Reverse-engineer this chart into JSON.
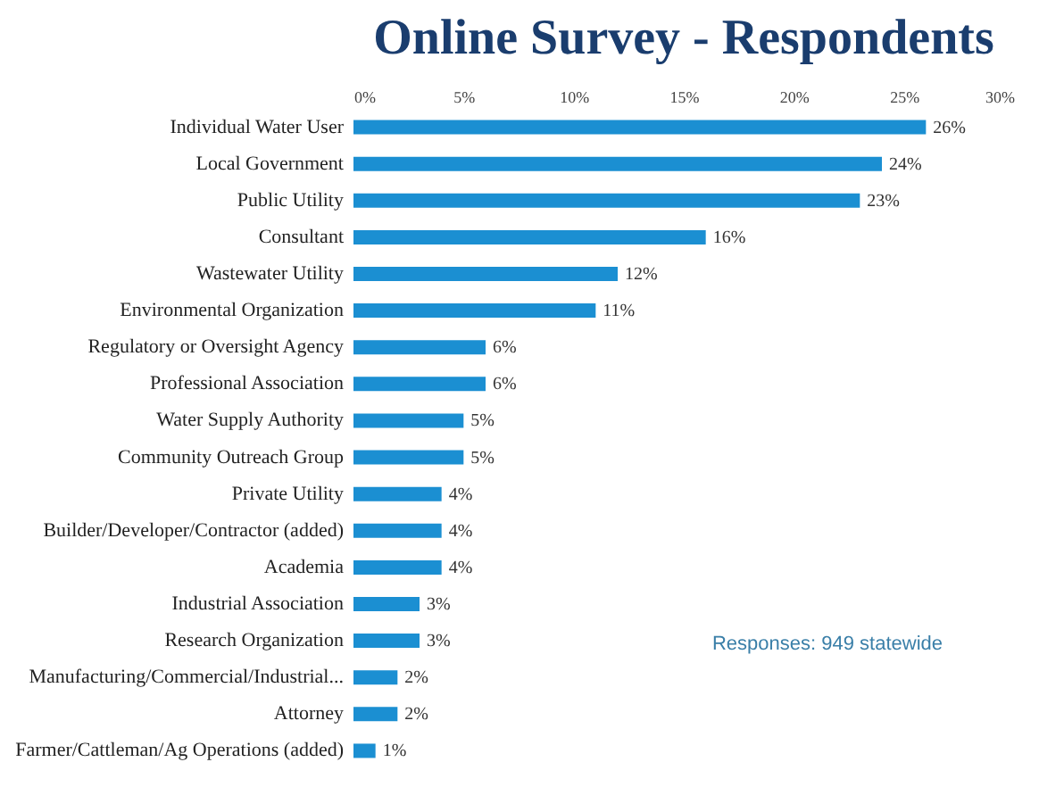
{
  "chart_data": {
    "type": "bar",
    "orientation": "horizontal",
    "title": "Online Survey - Respondents",
    "categories": [
      "Individual Water User",
      "Local Government",
      "Public Utility",
      "Consultant",
      "Wastewater Utility",
      "Environmental Organization",
      "Regulatory or Oversight Agency",
      "Professional Association",
      "Water Supply Authority",
      "Community Outreach Group",
      "Private Utility",
      "Builder/Developer/Contractor (added)",
      "Academia",
      "Industrial Association",
      "Research Organization",
      "Manufacturing/Commercial/Industrial...",
      "Attorney",
      "Farmer/Cattleman/Ag Operations (added)"
    ],
    "values": [
      26,
      24,
      23,
      16,
      12,
      11,
      6,
      6,
      5,
      5,
      4,
      4,
      4,
      3,
      3,
      2,
      2,
      1
    ],
    "value_labels": [
      "26%",
      "24%",
      "23%",
      "16%",
      "12%",
      "11%",
      "6%",
      "6%",
      "5%",
      "5%",
      "4%",
      "4%",
      "4%",
      "3%",
      "3%",
      "2%",
      "2%",
      "1%"
    ],
    "color": "#1b8fd2",
    "xlim": [
      0,
      30
    ],
    "xticks": [
      {
        "value": 0,
        "label": "0%"
      },
      {
        "value": 5,
        "label": "5%"
      },
      {
        "value": 10,
        "label": "10%"
      },
      {
        "value": 15,
        "label": "15%"
      },
      {
        "value": 20,
        "label": "20%"
      },
      {
        "value": 25,
        "label": "25%"
      },
      {
        "value": 30,
        "label": "30%"
      }
    ],
    "grid": false,
    "annotations": [
      "Responses: 949 statewide"
    ]
  }
}
